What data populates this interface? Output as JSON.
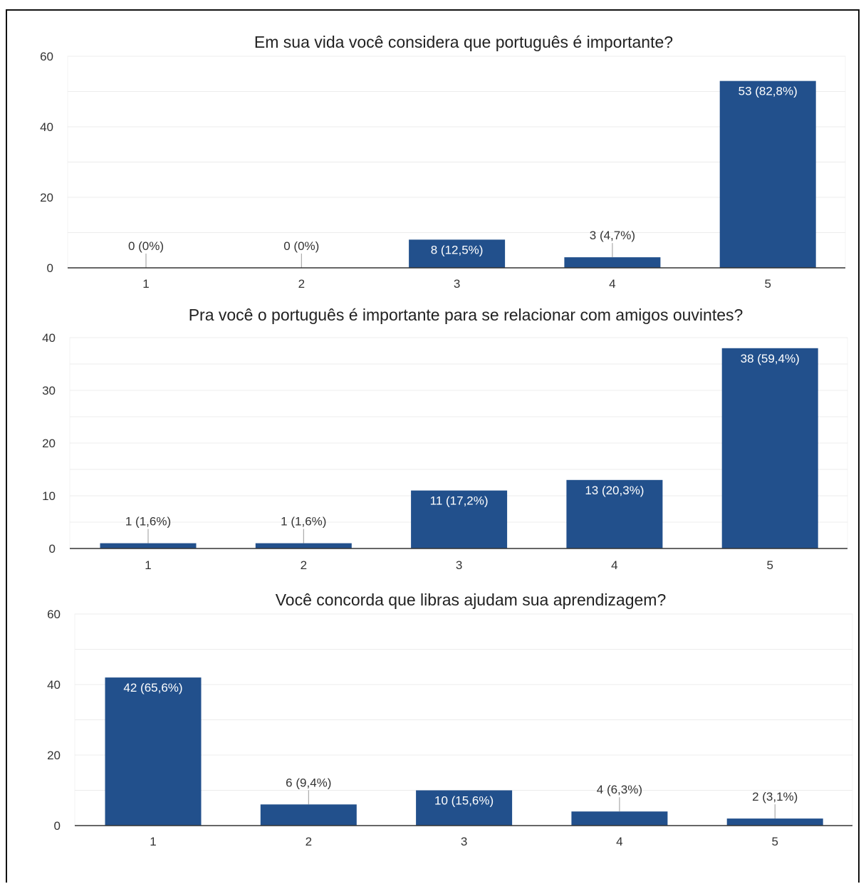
{
  "chart_data": [
    {
      "type": "bar",
      "title": "Em sua vida você considera que português é importante?",
      "categories": [
        "1",
        "2",
        "3",
        "4",
        "5"
      ],
      "values": [
        0,
        0,
        8,
        3,
        53
      ],
      "data_labels": [
        "0 (0%)",
        "0 (0%)",
        "8 (12,5%)",
        "3 (4,7%)",
        "53 (82,8%)"
      ],
      "ylim": [
        0,
        60
      ],
      "yticks": [
        "0",
        "20",
        "40",
        "60"
      ],
      "grid": true,
      "bar_color": "#22508c"
    },
    {
      "type": "bar",
      "title": "Pra você o português é importante para se relacionar com amigos ouvintes?",
      "categories": [
        "1",
        "2",
        "3",
        "4",
        "5"
      ],
      "values": [
        1,
        1,
        11,
        13,
        38
      ],
      "data_labels": [
        "1 (1,6%)",
        "1 (1,6%)",
        "11 (17,2%)",
        "13 (20,3%)",
        "38 (59,4%)"
      ],
      "ylim": [
        0,
        40
      ],
      "yticks": [
        "0",
        "10",
        "20",
        "30",
        "40"
      ],
      "grid": true,
      "bar_color": "#22508c"
    },
    {
      "type": "bar",
      "title": "Você concorda que libras ajudam sua aprendizagem?",
      "categories": [
        "1",
        "2",
        "3",
        "4",
        "5"
      ],
      "values": [
        42,
        6,
        10,
        4,
        2
      ],
      "data_labels": [
        "42 (65,6%)",
        "6 (9,4%)",
        "10 (15,6%)",
        "4 (6,3%)",
        "2 (3,1%)"
      ],
      "ylim": [
        0,
        60
      ],
      "yticks": [
        "0",
        "20",
        "40",
        "60"
      ],
      "grid": true,
      "bar_color": "#22508c"
    }
  ]
}
